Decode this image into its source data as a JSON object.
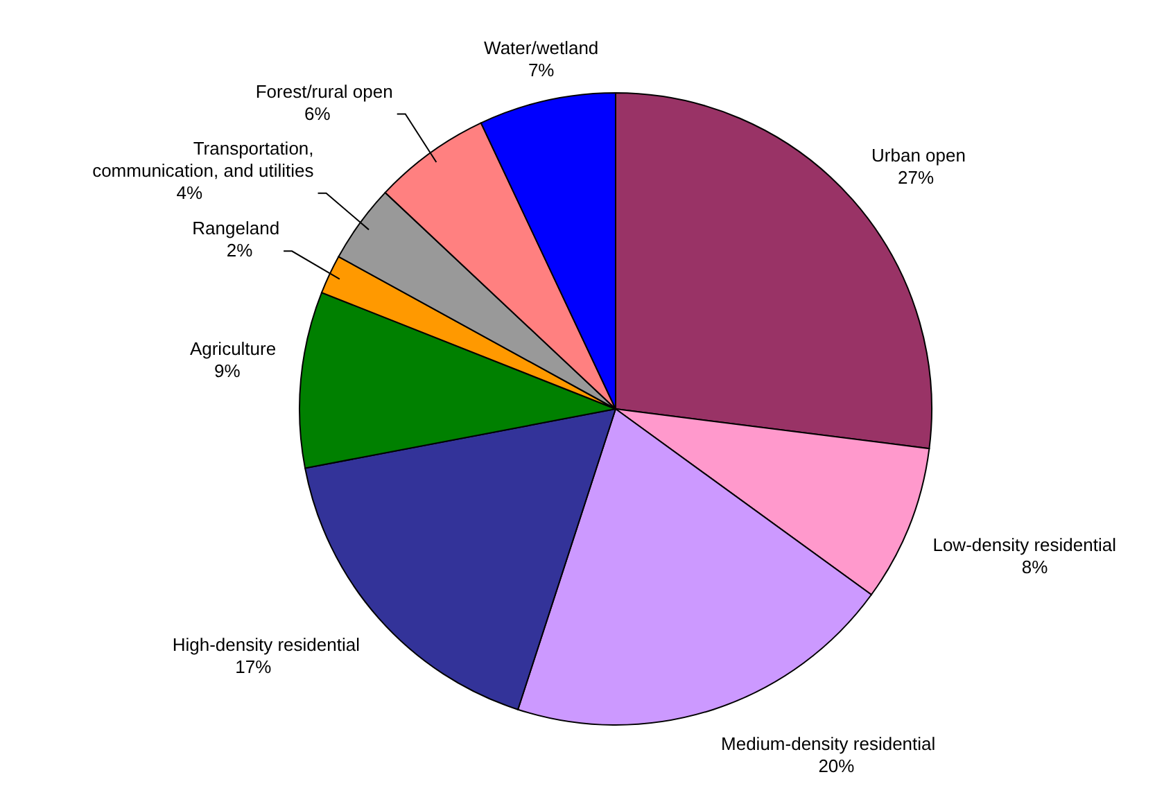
{
  "chart_data": {
    "type": "pie",
    "categories": [
      "Urban open",
      "Low-density residential",
      "Medium-density residential",
      "High-density residential",
      "Agriculture",
      "Rangeland",
      "Transportation, communication, and utilities",
      "Forest/rural open",
      "Water/wetland"
    ],
    "values": [
      27,
      8,
      20,
      17,
      9,
      2,
      4,
      6,
      7
    ],
    "value_labels": [
      "27%",
      "8%",
      "20%",
      "17%",
      "9%",
      "2%",
      "4%",
      "6%",
      "7%"
    ],
    "colors": [
      "#993366",
      "#ff99cc",
      "#cc99ff",
      "#333399",
      "#008000",
      "#ff9900",
      "#999999",
      "#ff8080",
      "#0000ff"
    ],
    "legend": false
  }
}
